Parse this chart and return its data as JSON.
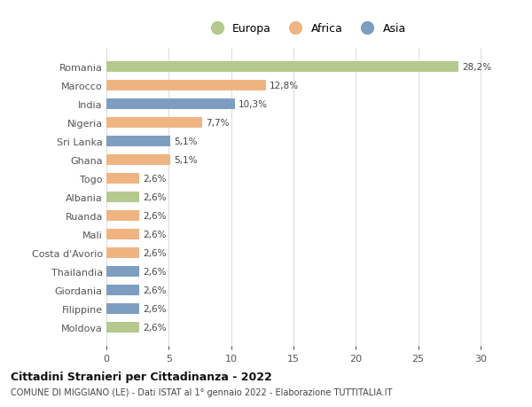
{
  "countries": [
    "Romania",
    "Marocco",
    "India",
    "Nigeria",
    "Sri Lanka",
    "Ghana",
    "Togo",
    "Albania",
    "Ruanda",
    "Mali",
    "Costa d'Avorio",
    "Thailandia",
    "Giordania",
    "Filippine",
    "Moldova"
  ],
  "values": [
    28.2,
    12.8,
    10.3,
    7.7,
    5.1,
    5.1,
    2.6,
    2.6,
    2.6,
    2.6,
    2.6,
    2.6,
    2.6,
    2.6,
    2.6
  ],
  "labels": [
    "28,2%",
    "12,8%",
    "10,3%",
    "7,7%",
    "5,1%",
    "5,1%",
    "2,6%",
    "2,6%",
    "2,6%",
    "2,6%",
    "2,6%",
    "2,6%",
    "2,6%",
    "2,6%",
    "2,6%"
  ],
  "continents": [
    "Europa",
    "Africa",
    "Asia",
    "Africa",
    "Asia",
    "Africa",
    "Africa",
    "Europa",
    "Africa",
    "Africa",
    "Africa",
    "Asia",
    "Asia",
    "Asia",
    "Europa"
  ],
  "colors": {
    "Europa": "#b5c98e",
    "Africa": "#f0b482",
    "Asia": "#7d9ec0"
  },
  "title": "Cittadini Stranieri per Cittadinanza - 2022",
  "subtitle": "COMUNE DI MIGGIANO (LE) - Dati ISTAT al 1° gennaio 2022 - Elaborazione TUTTITALIA.IT",
  "xlim": [
    0,
    32
  ],
  "xticks": [
    0,
    5,
    10,
    15,
    20,
    25,
    30
  ],
  "background_color": "#ffffff",
  "grid_color": "#dddddd"
}
